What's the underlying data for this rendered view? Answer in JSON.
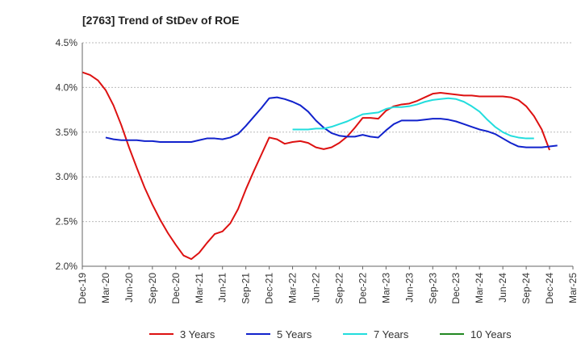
{
  "chart_data": {
    "type": "line",
    "title": "[2763]  Trend of StDev of ROE",
    "xlabel": "",
    "ylabel": "",
    "ylim": [
      2.0,
      4.5
    ],
    "y_ticks": [
      2.0,
      2.5,
      3.0,
      3.5,
      4.0,
      4.5
    ],
    "y_tick_labels": [
      "2.0%",
      "2.5%",
      "3.0%",
      "3.5%",
      "4.0%",
      "4.5%"
    ],
    "x_tick_labels": [
      "Dec-19",
      "Mar-20",
      "Jun-20",
      "Sep-20",
      "Dec-20",
      "Mar-21",
      "Jun-21",
      "Sep-21",
      "Dec-21",
      "Mar-22",
      "Jun-22",
      "Sep-22",
      "Dec-22",
      "Mar-23",
      "Jun-23",
      "Sep-23",
      "Dec-23",
      "Mar-24",
      "Jun-24",
      "Sep-24",
      "Dec-24",
      "Mar-25"
    ],
    "grid": "horizontal",
    "legend_position": "bottom",
    "series": [
      {
        "name": "3 Years",
        "color": "#dd1111",
        "start_month": 0,
        "values": [
          4.17,
          4.14,
          4.08,
          3.97,
          3.8,
          3.58,
          3.33,
          3.1,
          2.88,
          2.69,
          2.52,
          2.37,
          2.24,
          2.12,
          2.08,
          2.15,
          2.26,
          2.36,
          2.39,
          2.48,
          2.64,
          2.86,
          3.06,
          3.25,
          3.44,
          3.42,
          3.37,
          3.39,
          3.4,
          3.38,
          3.33,
          3.31,
          3.33,
          3.38,
          3.45,
          3.55,
          3.66,
          3.66,
          3.65,
          3.74,
          3.79,
          3.81,
          3.82,
          3.85,
          3.89,
          3.93,
          3.94,
          3.93,
          3.92,
          3.91,
          3.91,
          3.9,
          3.9,
          3.9,
          3.9,
          3.89,
          3.86,
          3.79,
          3.68,
          3.53,
          3.3
        ]
      },
      {
        "name": "5 Years",
        "color": "#1122cc",
        "start_month": 3,
        "values": [
          3.44,
          3.42,
          3.41,
          3.41,
          3.41,
          3.4,
          3.4,
          3.39,
          3.39,
          3.39,
          3.39,
          3.39,
          3.41,
          3.43,
          3.43,
          3.42,
          3.44,
          3.48,
          3.57,
          3.67,
          3.77,
          3.88,
          3.89,
          3.87,
          3.84,
          3.8,
          3.73,
          3.63,
          3.55,
          3.49,
          3.46,
          3.45,
          3.45,
          3.47,
          3.45,
          3.44,
          3.52,
          3.59,
          3.63,
          3.63,
          3.63,
          3.64,
          3.65,
          3.65,
          3.64,
          3.62,
          3.59,
          3.56,
          3.53,
          3.51,
          3.48,
          3.43,
          3.38,
          3.34,
          3.33,
          3.33,
          3.33,
          3.34,
          3.35
        ]
      },
      {
        "name": "7 Years",
        "color": "#22dddd",
        "start_month": 27,
        "values": [
          3.53,
          3.53,
          3.53,
          3.54,
          3.54,
          3.56,
          3.59,
          3.62,
          3.66,
          3.7,
          3.71,
          3.72,
          3.76,
          3.78,
          3.78,
          3.79,
          3.81,
          3.84,
          3.86,
          3.87,
          3.88,
          3.87,
          3.84,
          3.79,
          3.73,
          3.64,
          3.56,
          3.5,
          3.46,
          3.44,
          3.43,
          3.43
        ]
      },
      {
        "name": "10 Years",
        "color": "#228822",
        "start_month": 0,
        "values": []
      }
    ]
  }
}
